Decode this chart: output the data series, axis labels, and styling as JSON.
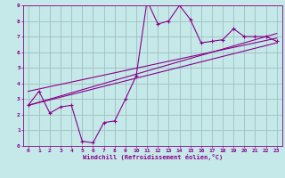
{
  "xlabel": "Windchill (Refroidissement éolien,°C)",
  "bg_color": "#c5e8e8",
  "line_color": "#8b008b",
  "grid_color": "#a0c0c0",
  "xlim": [
    -0.5,
    23.5
  ],
  "ylim": [
    0,
    9
  ],
  "xticks": [
    0,
    1,
    2,
    3,
    4,
    5,
    6,
    7,
    8,
    9,
    10,
    11,
    12,
    13,
    14,
    15,
    16,
    17,
    18,
    19,
    20,
    21,
    22,
    23
  ],
  "yticks": [
    0,
    1,
    2,
    3,
    4,
    5,
    6,
    7,
    8,
    9
  ],
  "data_line": [
    [
      0,
      2.6
    ],
    [
      1,
      3.5
    ],
    [
      2,
      2.1
    ],
    [
      3,
      2.5
    ],
    [
      4,
      2.6
    ],
    [
      5,
      0.3
    ],
    [
      6,
      0.2
    ],
    [
      7,
      1.5
    ],
    [
      8,
      1.6
    ],
    [
      9,
      3.0
    ],
    [
      10,
      4.5
    ],
    [
      11,
      9.3
    ],
    [
      12,
      7.8
    ],
    [
      13,
      8.0
    ],
    [
      14,
      9.0
    ],
    [
      15,
      8.1
    ],
    [
      16,
      6.6
    ],
    [
      17,
      6.7
    ],
    [
      18,
      6.8
    ],
    [
      19,
      7.5
    ],
    [
      20,
      7.0
    ],
    [
      21,
      7.0
    ],
    [
      22,
      7.0
    ],
    [
      23,
      6.7
    ]
  ],
  "reg_line1": [
    [
      0,
      2.6
    ],
    [
      23,
      6.6
    ]
  ],
  "reg_line2": [
    [
      0,
      3.5
    ],
    [
      23,
      6.9
    ]
  ],
  "reg_line3": [
    [
      0,
      2.6
    ],
    [
      23,
      7.2
    ]
  ]
}
